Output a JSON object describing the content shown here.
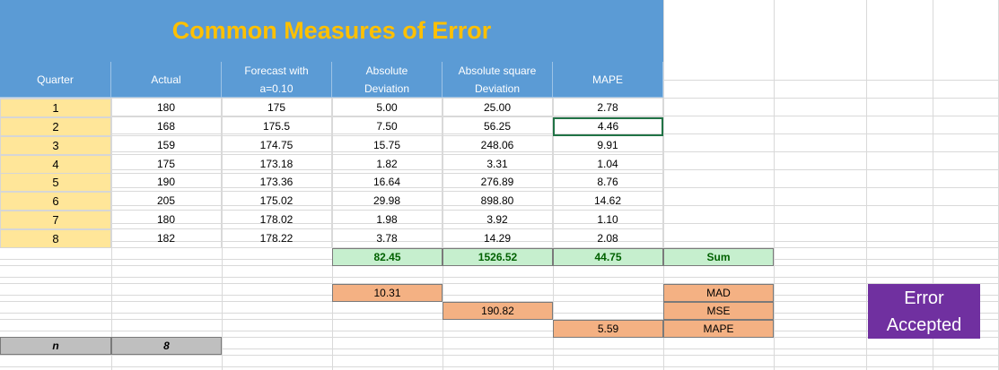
{
  "sheet": {
    "title": "Common Measures of Error",
    "headers": {
      "quarter": "Quarter",
      "actual": "Actual",
      "forecast_line1": "Forecast with",
      "forecast_line2": "a=0.10",
      "absdev_line1": "Absolute",
      "absdev_line2": "Deviation",
      "abssq_line1": "Absolute square",
      "abssq_line2": "Deviation",
      "mape": "MAPE"
    },
    "rows": [
      {
        "quarter": "1",
        "actual": "180",
        "forecast": "175",
        "abs_dev": "5.00",
        "abs_sq": "25.00",
        "mape": "2.78"
      },
      {
        "quarter": "2",
        "actual": "168",
        "forecast": "175.5",
        "abs_dev": "7.50",
        "abs_sq": "56.25",
        "mape": "4.46"
      },
      {
        "quarter": "3",
        "actual": "159",
        "forecast": "174.75",
        "abs_dev": "15.75",
        "abs_sq": "248.06",
        "mape": "9.91"
      },
      {
        "quarter": "4",
        "actual": "175",
        "forecast": "173.18",
        "abs_dev": "1.82",
        "abs_sq": "3.31",
        "mape": "1.04"
      },
      {
        "quarter": "5",
        "actual": "190",
        "forecast": "173.36",
        "abs_dev": "16.64",
        "abs_sq": "276.89",
        "mape": "8.76"
      },
      {
        "quarter": "6",
        "actual": "205",
        "forecast": "175.02",
        "abs_dev": "29.98",
        "abs_sq": "898.80",
        "mape": "14.62"
      },
      {
        "quarter": "7",
        "actual": "180",
        "forecast": "178.02",
        "abs_dev": "1.98",
        "abs_sq": "3.92",
        "mape": "1.10"
      },
      {
        "quarter": "8",
        "actual": "182",
        "forecast": "178.22",
        "abs_dev": "3.78",
        "abs_sq": "14.29",
        "mape": "2.08"
      }
    ],
    "sums": {
      "abs_dev": "82.45",
      "abs_sq": "1526.52",
      "mape": "44.75",
      "label": "Sum"
    },
    "results": {
      "mad": "10.31",
      "mse": "190.82",
      "mape": "5.59"
    },
    "result_labels": {
      "mad": "MAD",
      "mse": "MSE",
      "mape": "MAPE"
    },
    "n_label": "n",
    "n_value": "8",
    "status_line1": "Error",
    "status_line2": "Accepted"
  },
  "colors": {
    "header_blue": "#5b9bd5",
    "title_gold": "#ffc000",
    "quarter_yellow": "#ffe699",
    "sum_green": "#c6efce",
    "sum_text_green": "#006100",
    "result_orange": "#f4b183",
    "badge_purple": "#7030a0",
    "n_gray": "#bfbfbf"
  }
}
